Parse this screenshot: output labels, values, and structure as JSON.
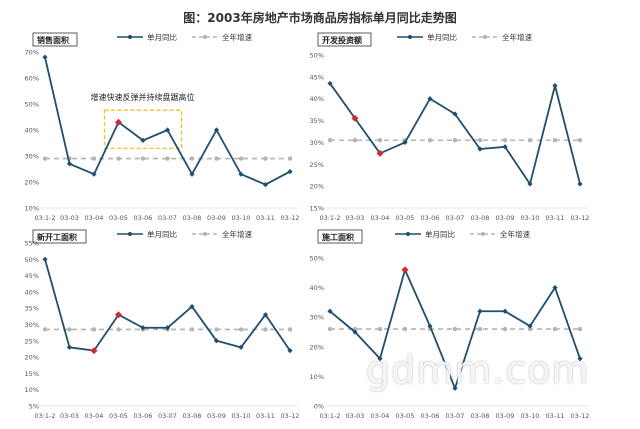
{
  "figure_title": "图：2003年房地产市场商品房指标单月同比走势图",
  "watermark": "gdmm.com",
  "colors": {
    "series": "#1f4e6e",
    "baseline": "#b4b4b4",
    "highlight": "#d6272a",
    "annotation_box": "#f0c020",
    "grid_text": "#555555"
  },
  "legend": {
    "monthly": "单月同比",
    "annual": "全年增速"
  },
  "chart_data": [
    {
      "type": "line",
      "title": "销售面积",
      "categories": [
        "03:1-2",
        "03-03",
        "03-04",
        "03-05",
        "03-06",
        "03-07",
        "03-08",
        "03-09",
        "03-10",
        "03-11",
        "03-12"
      ],
      "ylim": [
        10,
        70
      ],
      "yticks": [
        "10%",
        "20%",
        "30%",
        "40%",
        "50%",
        "60%",
        "70%"
      ],
      "tick_values": [
        10,
        20,
        30,
        40,
        50,
        60,
        70
      ],
      "series": [
        {
          "name": "单月同比",
          "values": [
            68,
            27,
            23,
            43,
            36,
            40,
            23,
            40,
            23,
            19,
            24
          ]
        },
        {
          "name": "全年增速",
          "values": [
            29,
            29,
            29,
            29,
            29,
            29,
            29,
            29,
            29,
            29,
            29
          ]
        }
      ],
      "highlight_points": [
        3
      ],
      "annotation": "增速快速反弹并持续盘踞高位",
      "annotation_span": [
        3,
        5
      ]
    },
    {
      "type": "line",
      "title": "开发投资额",
      "categories": [
        "03:1-2",
        "03-03",
        "03-04",
        "03-05",
        "03-06",
        "03-07",
        "03-08",
        "03-09",
        "03-10",
        "03-11",
        "03-12"
      ],
      "ylim": [
        15,
        50
      ],
      "yticks": [
        "15%",
        "20%",
        "25%",
        "30%",
        "35%",
        "40%",
        "45%",
        "50%"
      ],
      "tick_values": [
        15,
        20,
        25,
        30,
        35,
        40,
        45,
        50
      ],
      "series": [
        {
          "name": "单月同比",
          "values": [
            43.5,
            35.5,
            27.5,
            30,
            40,
            36.5,
            28.5,
            29,
            20.5,
            43,
            20.5
          ]
        },
        {
          "name": "全年增速",
          "values": [
            30.5,
            30.5,
            30.5,
            30.5,
            30.5,
            30.5,
            30.5,
            30.5,
            30.5,
            30.5,
            30.5
          ]
        }
      ],
      "highlight_points": [
        1,
        2
      ]
    },
    {
      "type": "line",
      "title": "新开工面积",
      "categories": [
        "03:1-2",
        "03-03",
        "03-04",
        "03-05",
        "03-06",
        "03-07",
        "03-08",
        "03-09",
        "03-10",
        "03-11",
        "03-12"
      ],
      "ylim": [
        5,
        55
      ],
      "yticks": [
        "5%",
        "10%",
        "15%",
        "20%",
        "25%",
        "30%",
        "35%",
        "40%",
        "45%",
        "50%",
        "55%"
      ],
      "tick_values": [
        5,
        10,
        15,
        20,
        25,
        30,
        35,
        40,
        45,
        50,
        55
      ],
      "series": [
        {
          "name": "单月同比",
          "values": [
            50,
            23,
            22,
            33,
            29,
            29,
            35.5,
            25,
            23,
            33,
            22
          ]
        },
        {
          "name": "全年增速",
          "values": [
            28.5,
            28.5,
            28.5,
            28.5,
            28.5,
            28.5,
            28.5,
            28.5,
            28.5,
            28.5,
            28.5
          ]
        }
      ],
      "highlight_points": [
        2,
        3
      ]
    },
    {
      "type": "line",
      "title": "施工面积",
      "categories": [
        "03:1-2",
        "03-03",
        "03-04",
        "03-05",
        "03-06",
        "03-07",
        "03-08",
        "03-09",
        "03-10",
        "03-11",
        "03-12"
      ],
      "ylim": [
        0,
        50
      ],
      "yticks": [
        "0%",
        "10%",
        "20%",
        "30%",
        "40%",
        "50%"
      ],
      "tick_values": [
        0,
        10,
        20,
        30,
        40,
        50
      ],
      "series": [
        {
          "name": "单月同比",
          "values": [
            32,
            25,
            16,
            46,
            27,
            6,
            32,
            32,
            27,
            40,
            16
          ]
        },
        {
          "name": "全年增速",
          "values": [
            26,
            26,
            26,
            26,
            26,
            26,
            26,
            26,
            26,
            26,
            26
          ]
        }
      ],
      "highlight_points": [
        3
      ]
    }
  ]
}
